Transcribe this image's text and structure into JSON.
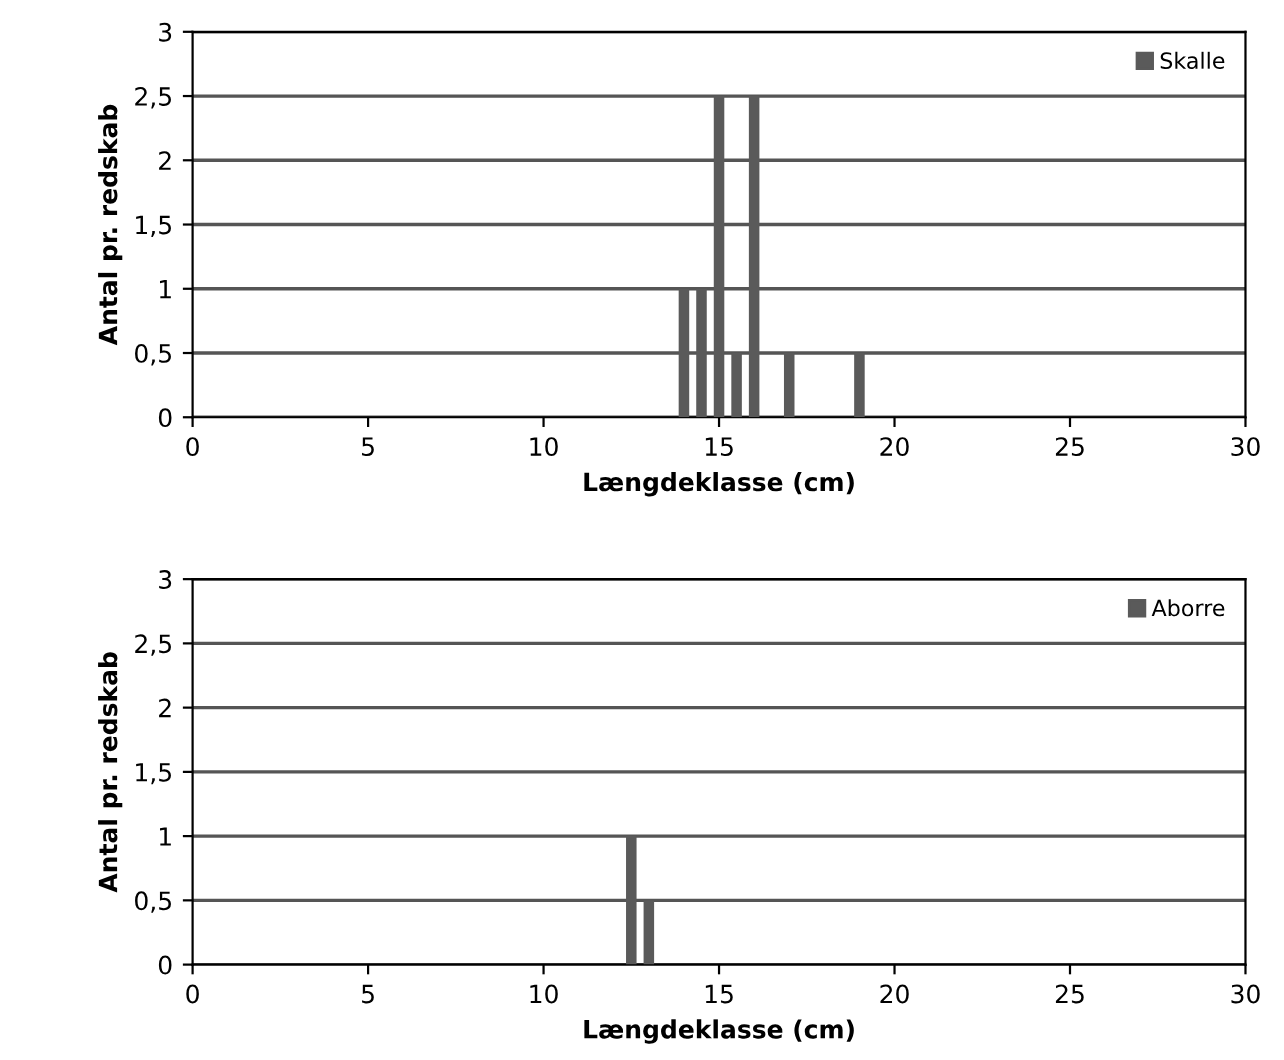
{
  "chart_data": [
    {
      "type": "bar",
      "xlabel": "Længdeklasse (cm)",
      "ylabel": "Antal pr. redskab",
      "x": [
        14,
        14.5,
        15,
        15.5,
        16,
        17,
        19
      ],
      "series": [
        {
          "name": "Skalle",
          "color": "#5a5a5a",
          "values": [
            1,
            1,
            2.5,
            0.5,
            2.5,
            0.5,
            0.5
          ]
        }
      ],
      "xlim": [
        0,
        30
      ],
      "xticks": [
        0,
        5,
        10,
        15,
        20,
        25,
        30
      ],
      "ylim": [
        0,
        3
      ],
      "yticks": [
        0,
        {
          "value": 0.5,
          "label": "0,5"
        },
        1,
        {
          "value": 1.5,
          "label": "1,5"
        },
        2,
        {
          "value": 2.5,
          "label": "2,5"
        },
        3
      ],
      "grid": "y",
      "legend": "top right"
    },
    {
      "type": "bar",
      "xlabel": "Længdeklasse (cm)",
      "ylabel": "Antal pr. redskab",
      "x": [
        12.5,
        13
      ],
      "series": [
        {
          "name": "Aborre",
          "color": "#5a5a5a",
          "values": [
            1,
            0.5
          ]
        }
      ],
      "xlim": [
        0,
        30
      ],
      "xticks": [
        0,
        5,
        10,
        15,
        20,
        25,
        30
      ],
      "ylim": [
        0,
        3
      ],
      "yticks": [
        0,
        {
          "value": 0.5,
          "label": "0,5"
        },
        1,
        {
          "value": 1.5,
          "label": "1,5"
        },
        2,
        {
          "value": 2.5,
          "label": "2,5"
        },
        3
      ],
      "grid": "y",
      "legend": "top right"
    }
  ]
}
